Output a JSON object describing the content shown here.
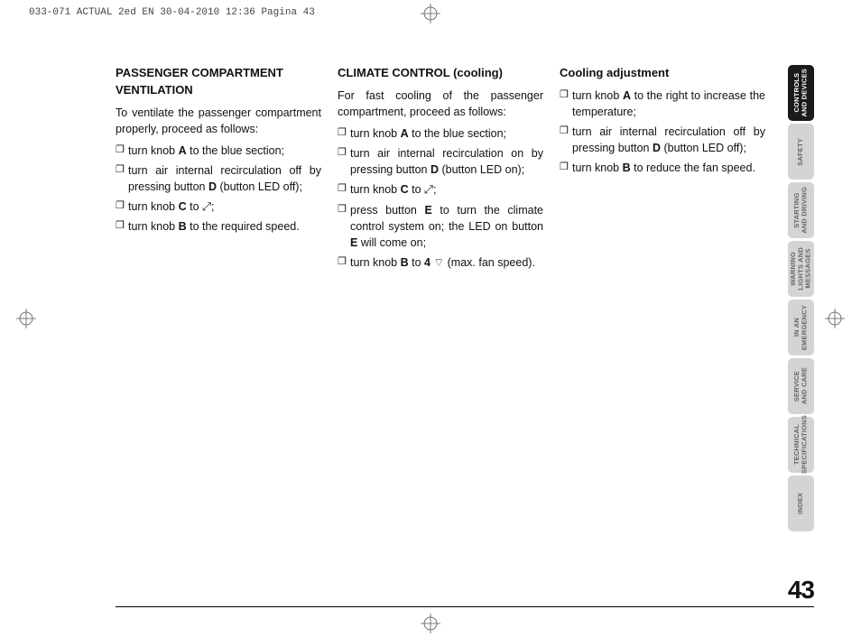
{
  "header": "033-071 ACTUAL 2ed EN  30-04-2010  12:36  Pagina 43",
  "page_number": "43",
  "columns": {
    "col1": {
      "title": "PASSENGER COMPARTMENT VENTILATION",
      "intro": "To ventilate the passenger compartment properly, proceed as follows:",
      "items": [
        "turn knob <b>A</b> to the blue section;",
        "turn air internal recirculation off by pressing button <b>D</b> (button LED off);",
        "turn knob <b>C</b> to ⤢;",
        "turn knob <b>B</b> to the required speed."
      ]
    },
    "col2": {
      "title": "CLIMATE CONTROL (cooling)",
      "intro": "For fast cooling of the passenger compartment, proceed as follows:",
      "items": [
        "turn knob <b>A</b> to the blue section;",
        "turn air internal recirculation on by pressing button <b>D</b> (button LED on);",
        "turn knob <b>C</b> to ⤢;",
        "press button <b>E</b> to turn the climate control system on; the LED on button <b>E</b> will come on;",
        "turn knob <b>B</b> to <b>4</b> ⌔ (max. fan speed)."
      ]
    },
    "col3": {
      "title": "Cooling adjustment",
      "intro": "",
      "items": [
        "turn knob <b>A</b> to the right to increase the temperature;",
        "turn air internal recirculation off by pressing button <b>D</b> (button LED off);",
        "turn knob <b>B</b> to reduce the fan speed."
      ]
    }
  },
  "tabs": [
    {
      "label": "CONTROLS\nAND DEVICES",
      "active": true
    },
    {
      "label": "SAFETY",
      "active": false
    },
    {
      "label": "STARTING\nAND DRIVING",
      "active": false
    },
    {
      "label": "WARNING\nLIGHTS AND\nMESSAGES",
      "active": false
    },
    {
      "label": "IN AN\nEMERGENCY",
      "active": false
    },
    {
      "label": "SERVICE\nAND CARE",
      "active": false
    },
    {
      "label": "TECHNICAL\nSPECIFICATIONS",
      "active": false
    },
    {
      "label": "INDEX",
      "active": false
    }
  ],
  "styles": {
    "bullet_marker": "❐",
    "active_tab_bg": "#1a1a1a",
    "inactive_tab_bg": "#d4d4d4",
    "body_font_size": 12.5,
    "heading_font_size": 13,
    "tab_font_size": 7.5,
    "page_num_font_size": 28
  }
}
